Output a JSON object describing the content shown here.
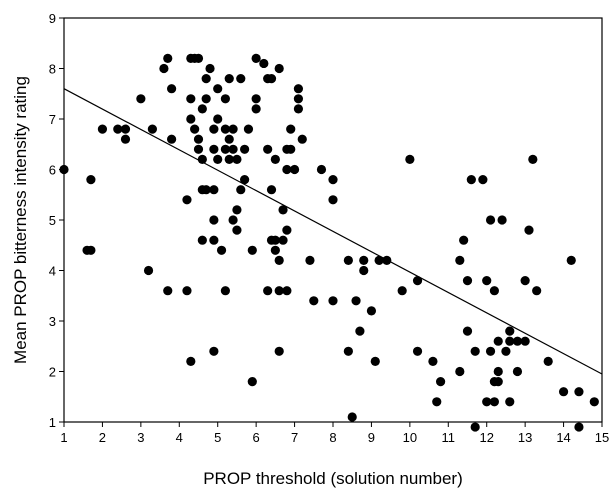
{
  "chart_data": {
    "type": "scatter",
    "title": "",
    "xlabel": "PROP threshold (solution number)",
    "ylabel": "Mean PROP bitterness intensity rating",
    "xlim": [
      1,
      15
    ],
    "ylim": [
      1,
      9
    ],
    "x_ticks": [
      1,
      2,
      3,
      4,
      5,
      6,
      7,
      8,
      9,
      10,
      11,
      12,
      13,
      14,
      15
    ],
    "y_ticks": [
      1,
      2,
      3,
      4,
      5,
      6,
      7,
      8,
      9
    ],
    "grid": false,
    "legend": "none",
    "point_color": "#000000",
    "trendline": {
      "x": [
        1,
        15
      ],
      "y": [
        7.6,
        1.95
      ]
    },
    "series": [
      {
        "points": [
          [
            1.0,
            6.0
          ],
          [
            1.6,
            4.4
          ],
          [
            1.7,
            4.4
          ],
          [
            1.7,
            5.8
          ],
          [
            2.0,
            6.8
          ],
          [
            2.4,
            6.8
          ],
          [
            2.6,
            6.8
          ],
          [
            2.6,
            6.6
          ],
          [
            3.0,
            7.4
          ],
          [
            3.2,
            4.0
          ],
          [
            3.3,
            6.8
          ],
          [
            3.6,
            8.0
          ],
          [
            3.7,
            8.2
          ],
          [
            3.7,
            3.6
          ],
          [
            3.8,
            7.6
          ],
          [
            3.8,
            6.6
          ],
          [
            4.2,
            3.6
          ],
          [
            4.2,
            5.4
          ],
          [
            4.3,
            8.2
          ],
          [
            4.4,
            8.2
          ],
          [
            4.5,
            8.2
          ],
          [
            4.3,
            7.4
          ],
          [
            4.3,
            7.0
          ],
          [
            4.4,
            6.8
          ],
          [
            4.5,
            6.6
          ],
          [
            4.5,
            6.4
          ],
          [
            4.6,
            6.2
          ],
          [
            4.6,
            7.2
          ],
          [
            4.7,
            7.4
          ],
          [
            4.7,
            7.8
          ],
          [
            4.8,
            8.0
          ],
          [
            4.6,
            5.6
          ],
          [
            4.7,
            5.6
          ],
          [
            4.9,
            5.6
          ],
          [
            4.9,
            6.8
          ],
          [
            4.9,
            6.4
          ],
          [
            5.0,
            6.2
          ],
          [
            5.0,
            7.0
          ],
          [
            5.0,
            7.6
          ],
          [
            4.3,
            2.2
          ],
          [
            4.6,
            4.6
          ],
          [
            4.9,
            5.0
          ],
          [
            4.9,
            4.6
          ],
          [
            4.9,
            2.4
          ],
          [
            5.1,
            4.4
          ],
          [
            5.2,
            6.8
          ],
          [
            5.2,
            6.4
          ],
          [
            5.2,
            7.4
          ],
          [
            5.3,
            7.8
          ],
          [
            5.3,
            6.6
          ],
          [
            5.3,
            6.2
          ],
          [
            5.4,
            6.4
          ],
          [
            5.5,
            6.2
          ],
          [
            5.4,
            6.8
          ],
          [
            5.6,
            7.8
          ],
          [
            5.2,
            3.6
          ],
          [
            5.4,
            5.0
          ],
          [
            5.5,
            5.2
          ],
          [
            5.5,
            4.8
          ],
          [
            5.6,
            5.6
          ],
          [
            5.7,
            5.8
          ],
          [
            5.7,
            6.4
          ],
          [
            5.8,
            6.8
          ],
          [
            5.9,
            4.4
          ],
          [
            5.9,
            1.8
          ],
          [
            6.0,
            8.2
          ],
          [
            6.0,
            7.4
          ],
          [
            6.0,
            7.2
          ],
          [
            6.2,
            8.1
          ],
          [
            6.3,
            7.8
          ],
          [
            6.4,
            7.8
          ],
          [
            6.3,
            6.4
          ],
          [
            6.3,
            3.6
          ],
          [
            6.4,
            4.6
          ],
          [
            6.4,
            5.6
          ],
          [
            6.5,
            6.2
          ],
          [
            6.5,
            4.6
          ],
          [
            6.5,
            4.4
          ],
          [
            6.6,
            4.2
          ],
          [
            6.6,
            8.0
          ],
          [
            6.6,
            2.4
          ],
          [
            6.6,
            3.6
          ],
          [
            6.7,
            4.6
          ],
          [
            6.7,
            5.2
          ],
          [
            6.8,
            6.0
          ],
          [
            6.8,
            6.4
          ],
          [
            6.8,
            3.6
          ],
          [
            6.8,
            4.8
          ],
          [
            6.9,
            6.8
          ],
          [
            6.9,
            6.4
          ],
          [
            7.0,
            6.0
          ],
          [
            7.1,
            7.4
          ],
          [
            7.1,
            7.6
          ],
          [
            7.1,
            7.2
          ],
          [
            7.2,
            6.6
          ],
          [
            7.4,
            4.2
          ],
          [
            7.5,
            3.4
          ],
          [
            7.7,
            6.0
          ],
          [
            8.0,
            5.8
          ],
          [
            8.0,
            5.4
          ],
          [
            8.0,
            3.4
          ],
          [
            8.4,
            4.2
          ],
          [
            8.4,
            2.4
          ],
          [
            8.5,
            1.1
          ],
          [
            8.6,
            3.4
          ],
          [
            8.7,
            2.8
          ],
          [
            8.8,
            4.2
          ],
          [
            8.8,
            4.0
          ],
          [
            9.0,
            3.2
          ],
          [
            9.1,
            2.2
          ],
          [
            9.2,
            4.2
          ],
          [
            9.4,
            4.2
          ],
          [
            9.8,
            3.6
          ],
          [
            10.0,
            6.2
          ],
          [
            10.2,
            3.8
          ],
          [
            10.2,
            2.4
          ],
          [
            10.6,
            2.2
          ],
          [
            10.7,
            1.4
          ],
          [
            10.8,
            1.8
          ],
          [
            11.3,
            4.2
          ],
          [
            11.3,
            2.0
          ],
          [
            11.4,
            4.6
          ],
          [
            11.5,
            3.8
          ],
          [
            11.5,
            2.8
          ],
          [
            11.6,
            5.8
          ],
          [
            11.7,
            2.4
          ],
          [
            11.7,
            0.9
          ],
          [
            11.9,
            5.8
          ],
          [
            12.0,
            3.8
          ],
          [
            12.0,
            1.4
          ],
          [
            12.1,
            5.0
          ],
          [
            12.1,
            2.4
          ],
          [
            12.2,
            1.8
          ],
          [
            12.2,
            1.4
          ],
          [
            12.2,
            3.6
          ],
          [
            12.3,
            2.6
          ],
          [
            12.3,
            2.0
          ],
          [
            12.3,
            1.8
          ],
          [
            12.4,
            5.0
          ],
          [
            12.5,
            2.4
          ],
          [
            12.6,
            2.6
          ],
          [
            12.6,
            1.4
          ],
          [
            12.6,
            2.8
          ],
          [
            12.8,
            2.6
          ],
          [
            12.8,
            2.0
          ],
          [
            13.0,
            3.8
          ],
          [
            13.0,
            2.6
          ],
          [
            13.1,
            4.8
          ],
          [
            13.2,
            6.2
          ],
          [
            13.3,
            3.6
          ],
          [
            13.6,
            2.2
          ],
          [
            14.0,
            1.6
          ],
          [
            14.2,
            4.2
          ],
          [
            14.4,
            1.6
          ],
          [
            14.4,
            0.9
          ],
          [
            14.8,
            1.4
          ]
        ]
      }
    ]
  }
}
